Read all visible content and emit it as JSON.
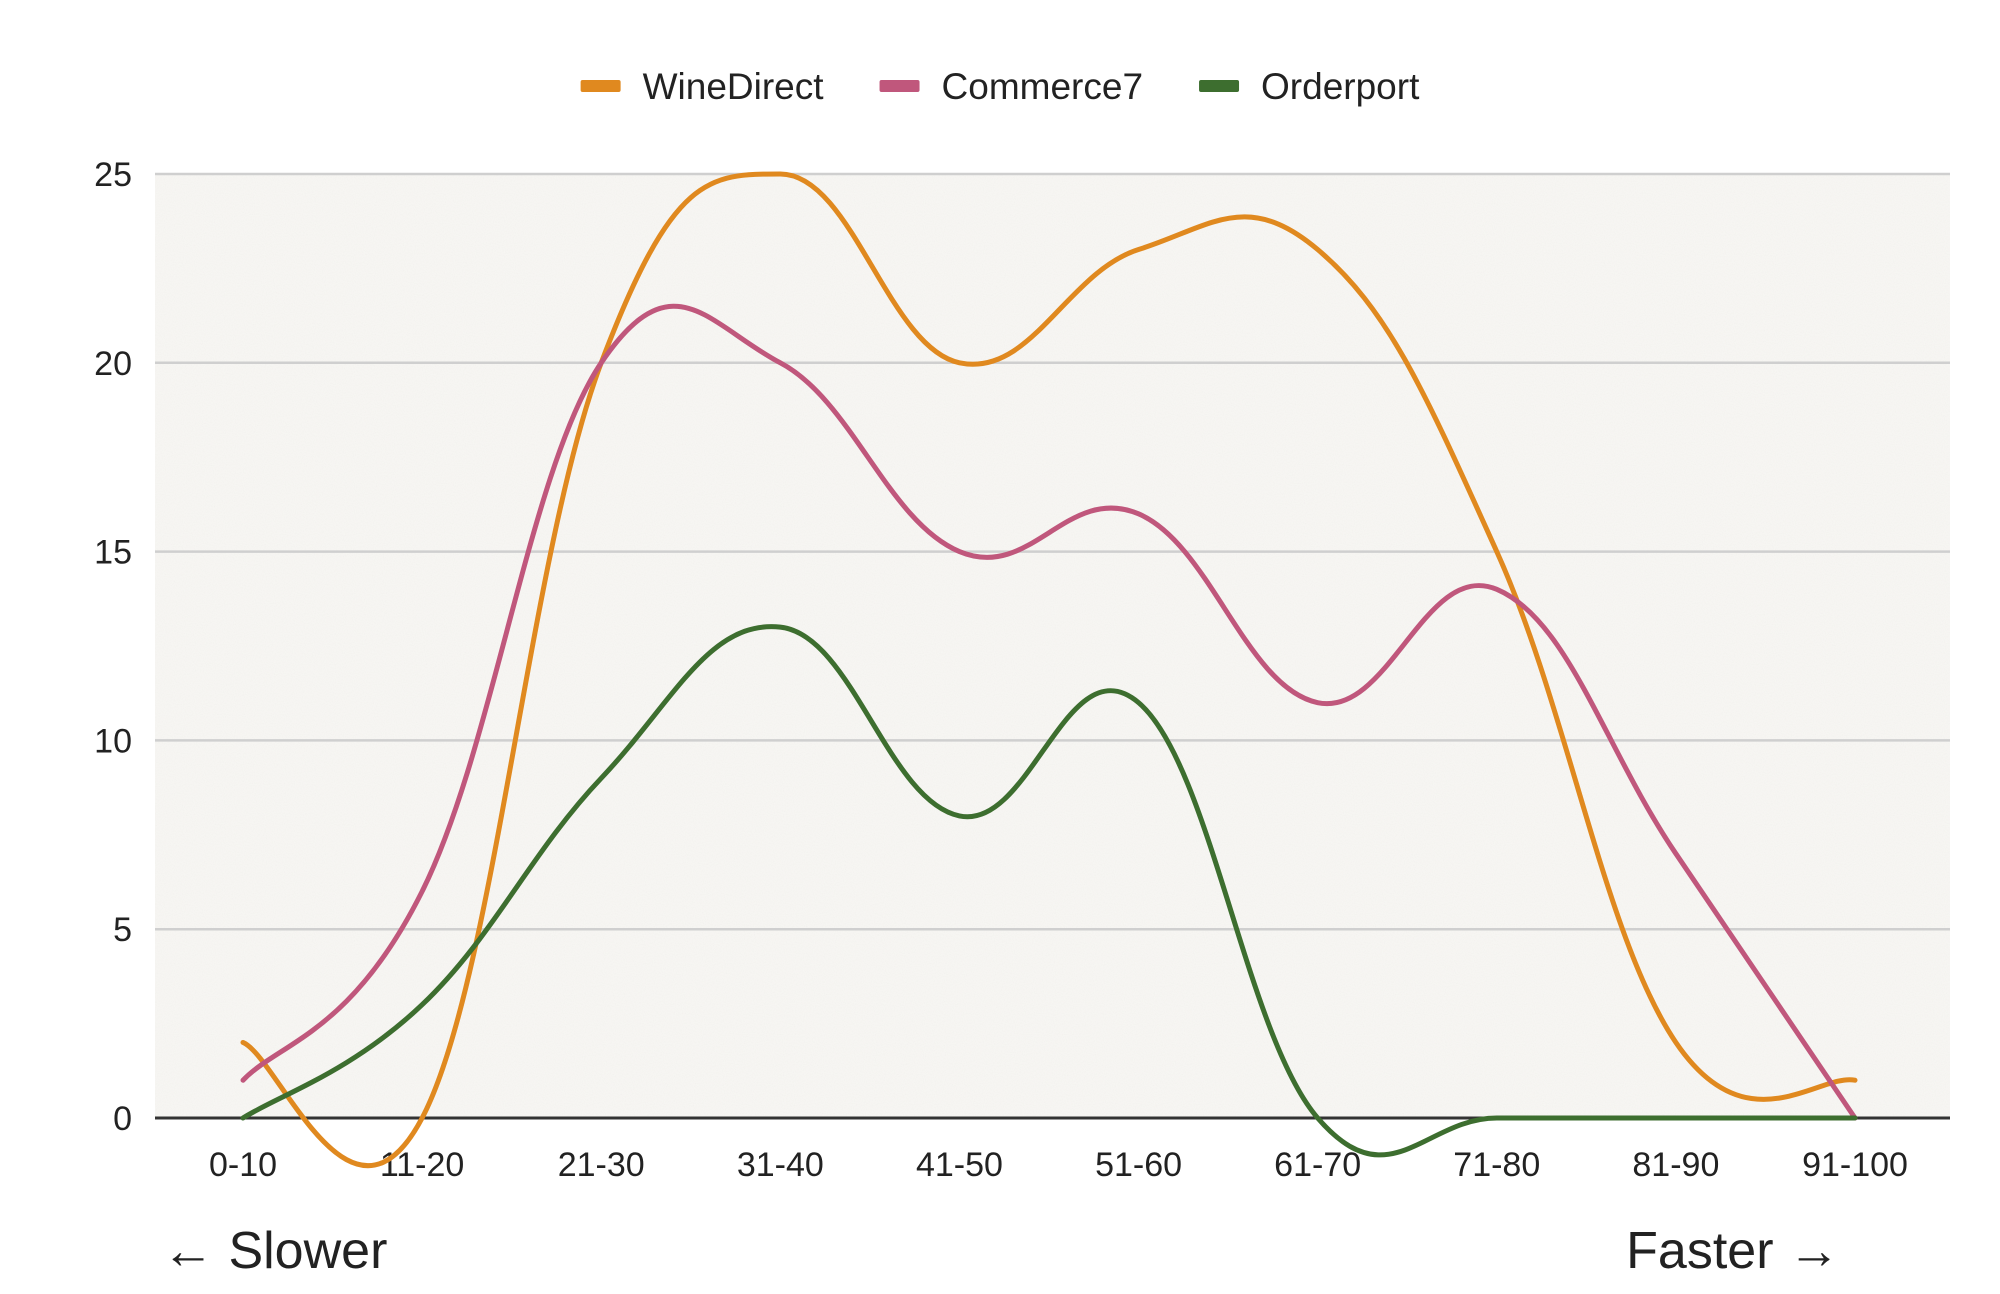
{
  "chart_data": {
    "type": "line",
    "title": "",
    "xlabel": "",
    "ylabel": "",
    "categories": [
      "0-10",
      "11-20",
      "21-30",
      "31-40",
      "41-50",
      "51-60",
      "61-70",
      "71-80",
      "81-90",
      "91-100"
    ],
    "ylim": [
      0,
      25
    ],
    "yticks": [
      0,
      5,
      10,
      15,
      20,
      25
    ],
    "grid": true,
    "legend_position": "top-center",
    "smooth": true,
    "series": [
      {
        "name": "WineDirect",
        "color": "#e0891f",
        "values": [
          2,
          0,
          20,
          25,
          20,
          23,
          23,
          15,
          2,
          1
        ]
      },
      {
        "name": "Commerce7",
        "color": "#c0577c",
        "values": [
          1,
          6,
          20,
          20,
          15,
          16,
          11,
          14,
          7,
          0
        ]
      },
      {
        "name": "Orderport",
        "color": "#3d6e2f",
        "values": [
          0,
          3,
          9,
          13,
          8,
          11,
          0,
          0,
          0,
          0
        ]
      }
    ],
    "annotations": {
      "left": "← Slower",
      "right": "Faster →"
    }
  }
}
